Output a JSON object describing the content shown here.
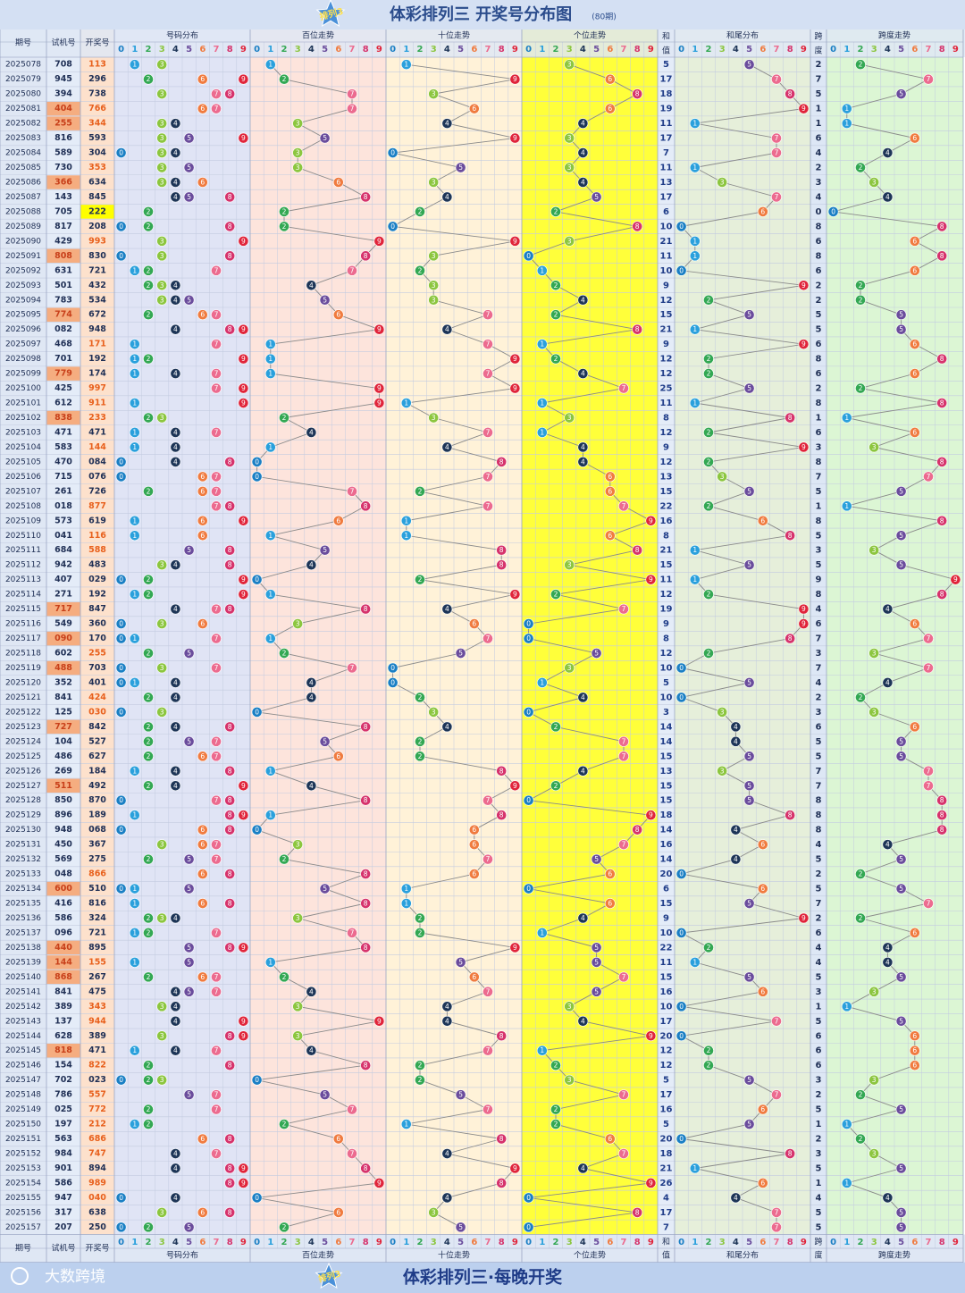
{
  "header": {
    "title": "体彩排列三  开奖号分布图",
    "issues": "(80期)",
    "logo": "排列3",
    "columns": {
      "period": "期号",
      "trial": "试机号",
      "draw": "开奖号",
      "dist": "号码分布",
      "hundreds": "百位走势",
      "tens": "十位走势",
      "units": "个位走势",
      "sum_top": "和",
      "sum_bottom": "值",
      "tail": "和尾分布",
      "span_top": "跨",
      "span_bottom": "度",
      "span_trend": "跨度走势"
    },
    "digits": [
      0,
      1,
      2,
      3,
      4,
      5,
      6,
      7,
      8,
      9
    ]
  },
  "rows": [
    [
      "2025078",
      "708",
      "113",
      5,
      2
    ],
    [
      "2025079",
      "945",
      "296",
      17,
      7
    ],
    [
      "2025080",
      "394",
      "738",
      18,
      5
    ],
    [
      "2025081",
      "404",
      "766",
      19,
      1
    ],
    [
      "2025082",
      "255",
      "344",
      11,
      1
    ],
    [
      "2025083",
      "816",
      "593",
      17,
      6
    ],
    [
      "2025084",
      "589",
      "304",
      7,
      4
    ],
    [
      "2025085",
      "730",
      "353",
      11,
      2
    ],
    [
      "2025086",
      "366",
      "634",
      13,
      3
    ],
    [
      "2025087",
      "143",
      "845",
      17,
      4
    ],
    [
      "2025088",
      "705",
      "222",
      6,
      0
    ],
    [
      "2025089",
      "817",
      "208",
      10,
      8
    ],
    [
      "2025090",
      "429",
      "993",
      21,
      6
    ],
    [
      "2025091",
      "808",
      "830",
      11,
      8
    ],
    [
      "2025092",
      "631",
      "721",
      10,
      6
    ],
    [
      "2025093",
      "501",
      "432",
      9,
      2
    ],
    [
      "2025094",
      "783",
      "534",
      12,
      2
    ],
    [
      "2025095",
      "774",
      "672",
      15,
      5
    ],
    [
      "2025096",
      "082",
      "948",
      21,
      5
    ],
    [
      "2025097",
      "468",
      "171",
      9,
      6
    ],
    [
      "2025098",
      "701",
      "192",
      12,
      8
    ],
    [
      "2025099",
      "779",
      "174",
      12,
      6
    ],
    [
      "2025100",
      "425",
      "997",
      25,
      2
    ],
    [
      "2025101",
      "612",
      "911",
      11,
      8
    ],
    [
      "2025102",
      "838",
      "233",
      8,
      1
    ],
    [
      "2025103",
      "471",
      "471",
      12,
      6
    ],
    [
      "2025104",
      "583",
      "144",
      9,
      3
    ],
    [
      "2025105",
      "470",
      "084",
      12,
      8
    ],
    [
      "2025106",
      "715",
      "076",
      13,
      7
    ],
    [
      "2025107",
      "261",
      "726",
      15,
      5
    ],
    [
      "2025108",
      "018",
      "877",
      22,
      1
    ],
    [
      "2025109",
      "573",
      "619",
      16,
      8
    ],
    [
      "2025110",
      "041",
      "116",
      8,
      5
    ],
    [
      "2025111",
      "684",
      "588",
      21,
      3
    ],
    [
      "2025112",
      "942",
      "483",
      15,
      5
    ],
    [
      "2025113",
      "407",
      "029",
      11,
      9
    ],
    [
      "2025114",
      "271",
      "192",
      12,
      8
    ],
    [
      "2025115",
      "717",
      "847",
      19,
      4
    ],
    [
      "2025116",
      "549",
      "360",
      9,
      6
    ],
    [
      "2025117",
      "090",
      "170",
      8,
      7
    ],
    [
      "2025118",
      "602",
      "255",
      12,
      3
    ],
    [
      "2025119",
      "488",
      "703",
      10,
      7
    ],
    [
      "2025120",
      "352",
      "401",
      5,
      4
    ],
    [
      "2025121",
      "841",
      "424",
      10,
      2
    ],
    [
      "2025122",
      "125",
      "030",
      3,
      3
    ],
    [
      "2025123",
      "727",
      "842",
      14,
      6
    ],
    [
      "2025124",
      "104",
      "527",
      14,
      5
    ],
    [
      "2025125",
      "486",
      "627",
      15,
      5
    ],
    [
      "2025126",
      "269",
      "184",
      13,
      7
    ],
    [
      "2025127",
      "511",
      "492",
      15,
      7
    ],
    [
      "2025128",
      "850",
      "870",
      15,
      8
    ],
    [
      "2025129",
      "896",
      "189",
      18,
      8
    ],
    [
      "2025130",
      "948",
      "068",
      14,
      8
    ],
    [
      "2025131",
      "450",
      "367",
      16,
      4
    ],
    [
      "2025132",
      "569",
      "275",
      14,
      5
    ],
    [
      "2025133",
      "048",
      "866",
      20,
      2
    ],
    [
      "2025134",
      "600",
      "510",
      6,
      5
    ],
    [
      "2025135",
      "416",
      "816",
      15,
      7
    ],
    [
      "2025136",
      "586",
      "324",
      9,
      2
    ],
    [
      "2025137",
      "096",
      "721",
      10,
      6
    ],
    [
      "2025138",
      "440",
      "895",
      22,
      4
    ],
    [
      "2025139",
      "144",
      "155",
      11,
      4
    ],
    [
      "2025140",
      "868",
      "267",
      15,
      5
    ],
    [
      "2025141",
      "841",
      "475",
      16,
      3
    ],
    [
      "2025142",
      "389",
      "343",
      10,
      1
    ],
    [
      "2025143",
      "137",
      "944",
      17,
      5
    ],
    [
      "2025144",
      "628",
      "389",
      20,
      6
    ],
    [
      "2025145",
      "818",
      "471",
      12,
      6
    ],
    [
      "2025146",
      "154",
      "822",
      12,
      6
    ],
    [
      "2025147",
      "702",
      "023",
      5,
      3
    ],
    [
      "2025148",
      "786",
      "557",
      17,
      2
    ],
    [
      "2025149",
      "025",
      "772",
      16,
      5
    ],
    [
      "2025150",
      "197",
      "212",
      5,
      1
    ],
    [
      "2025151",
      "563",
      "686",
      20,
      2
    ],
    [
      "2025152",
      "984",
      "747",
      18,
      3
    ],
    [
      "2025153",
      "901",
      "894",
      21,
      5
    ],
    [
      "2025154",
      "586",
      "989",
      26,
      1
    ],
    [
      "2025155",
      "947",
      "040",
      4,
      4
    ],
    [
      "2025156",
      "317",
      "638",
      17,
      5
    ],
    [
      "2025157",
      "207",
      "250",
      7,
      5
    ]
  ],
  "footer": {
    "brand": "大数跨境",
    "slogan": "体彩排列三·每晚开奖"
  }
}
